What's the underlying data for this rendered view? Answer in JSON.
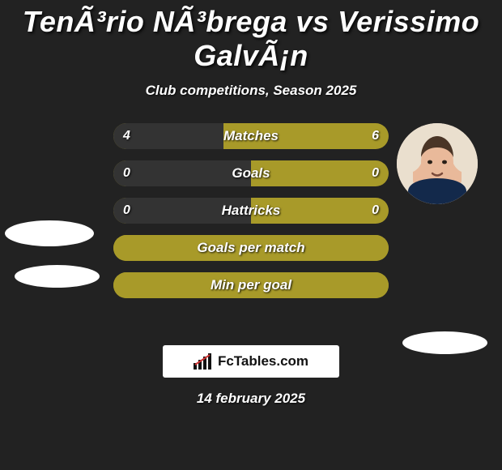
{
  "title": "TenÃ³rio NÃ³brega vs Verissimo GalvÃ¡n",
  "subtitle": "Club competitions, Season 2025",
  "date": "14 february 2025",
  "branding_text": "FcTables.com",
  "colors": {
    "bg": "#222222",
    "bar_outer": "#a89a29",
    "bar_fill_yellow": "#a89a29",
    "bar_fill_dark": "#333333",
    "text": "#ffffff",
    "branding_bg": "#ffffff",
    "branding_text": "#111111"
  },
  "avatars": {
    "right_present": true
  },
  "bars": [
    {
      "label": "Matches",
      "left_value": "4",
      "right_value": "6",
      "left_pct": 40,
      "right_pct": 60,
      "show_values": true
    },
    {
      "label": "Goals",
      "left_value": "0",
      "right_value": "0",
      "left_pct": 50,
      "right_pct": 50,
      "show_values": true
    },
    {
      "label": "Hattricks",
      "left_value": "0",
      "right_value": "0",
      "left_pct": 50,
      "right_pct": 50,
      "show_values": true
    },
    {
      "label": "Goals per match",
      "left_value": "",
      "right_value": "",
      "left_pct": 100,
      "right_pct": 0,
      "show_values": false
    },
    {
      "label": "Min per goal",
      "left_value": "",
      "right_value": "",
      "left_pct": 100,
      "right_pct": 0,
      "show_values": false
    }
  ]
}
